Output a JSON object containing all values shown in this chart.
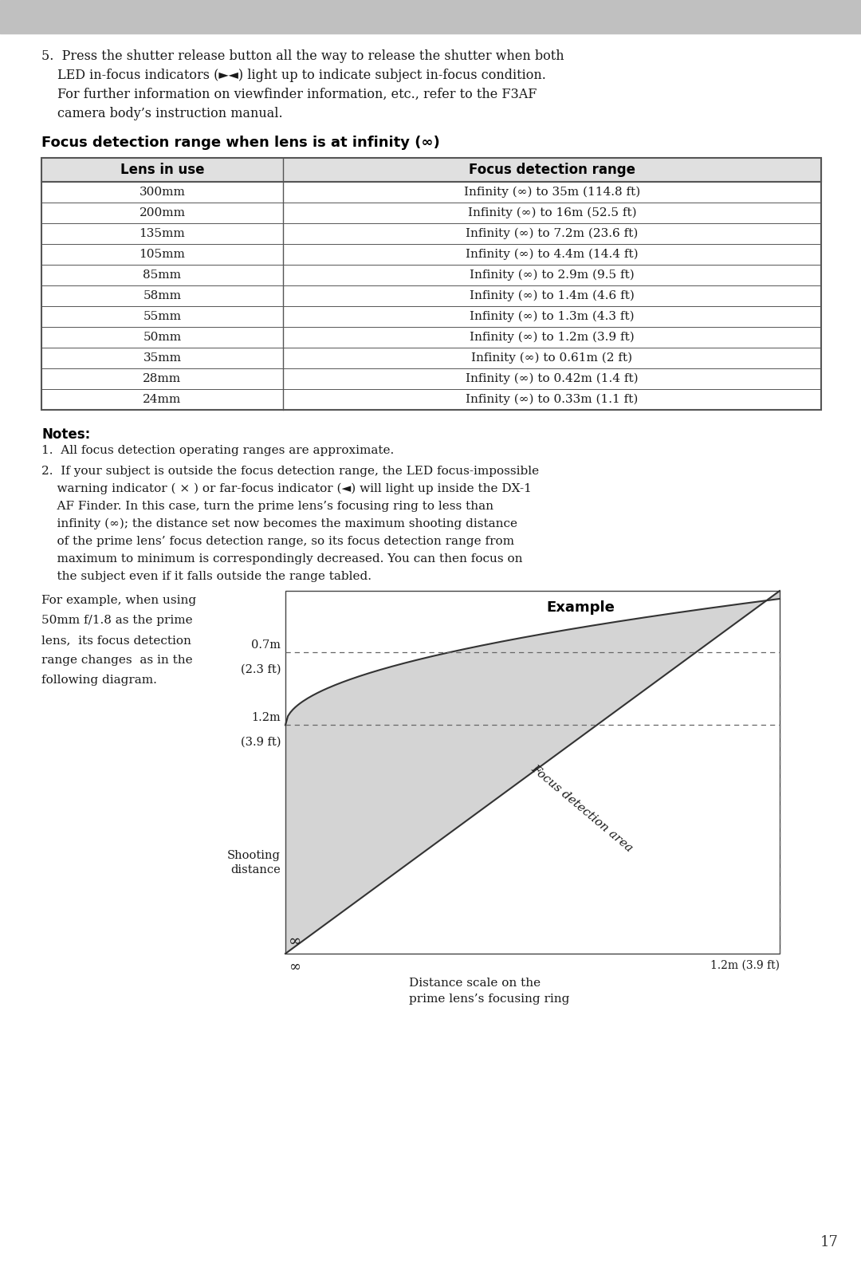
{
  "page_bg": "#ffffff",
  "header_bar_color": "#c0c0c0",
  "table_header_lens": "Lens in use",
  "table_header_range": "Focus detection range",
  "table_rows": [
    [
      "300mm",
      "Infinity (∞) to 35m (114.8 ft)"
    ],
    [
      "200mm",
      "Infinity (∞) to 16m (52.5 ft)"
    ],
    [
      "135mm",
      "Infinity (∞) to 7.2m (23.6 ft)"
    ],
    [
      "105mm",
      "Infinity (∞) to 4.4m (14.4 ft)"
    ],
    [
      "85mm",
      "Infinity (∞) to 2.9m (9.5 ft)"
    ],
    [
      "58mm",
      "Infinity (∞) to 1.4m (4.6 ft)"
    ],
    [
      "55mm",
      "Infinity (∞) to 1.3m (4.3 ft)"
    ],
    [
      "50mm",
      "Infinity (∞) to 1.2m (3.9 ft)"
    ],
    [
      "35mm",
      "Infinity (∞) to 0.61m (2 ft)"
    ],
    [
      "28mm",
      "Infinity (∞) to 0.42m (1.4 ft)"
    ],
    [
      "24mm",
      "Infinity (∞) to 0.33m (1.1 ft)"
    ]
  ],
  "diagram_title": "Example",
  "diagram_label": "Focus detection area",
  "page_number": "17"
}
